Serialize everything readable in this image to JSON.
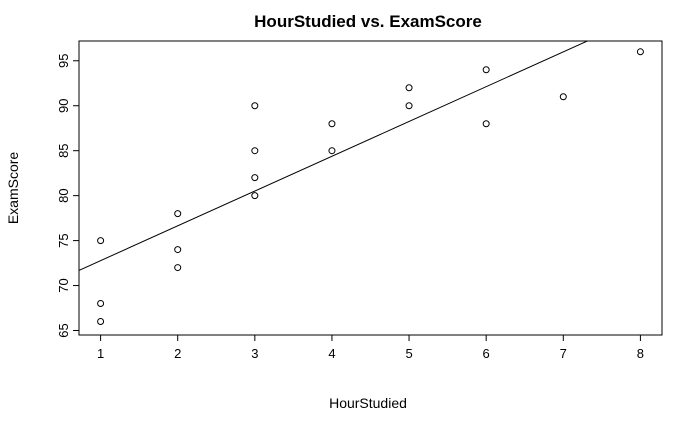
{
  "chart_data": {
    "type": "scatter",
    "title": "HourStudied vs. ExamScore",
    "xlabel": "HourStudied",
    "ylabel": "ExamScore",
    "xlim": [
      0.72,
      8.28
    ],
    "ylim": [
      64.5,
      97.2
    ],
    "x_ticks": [
      1,
      2,
      3,
      4,
      5,
      6,
      7,
      8
    ],
    "y_ticks": [
      65,
      70,
      75,
      80,
      85,
      90,
      95
    ],
    "grid": false,
    "legend": "none",
    "marker": "open-circle",
    "points": [
      {
        "x": 1,
        "y": 75
      },
      {
        "x": 1,
        "y": 68
      },
      {
        "x": 1,
        "y": 66
      },
      {
        "x": 2,
        "y": 78
      },
      {
        "x": 2,
        "y": 74
      },
      {
        "x": 2,
        "y": 72
      },
      {
        "x": 3,
        "y": 90
      },
      {
        "x": 3,
        "y": 85
      },
      {
        "x": 3,
        "y": 82
      },
      {
        "x": 3,
        "y": 80
      },
      {
        "x": 4,
        "y": 88
      },
      {
        "x": 4,
        "y": 85
      },
      {
        "x": 5,
        "y": 92
      },
      {
        "x": 5,
        "y": 90
      },
      {
        "x": 6,
        "y": 94
      },
      {
        "x": 6,
        "y": 88
      },
      {
        "x": 7,
        "y": 91
      },
      {
        "x": 8,
        "y": 96
      }
    ],
    "regression_line": {
      "intercept": 68.9,
      "slope": 3.87
    }
  }
}
